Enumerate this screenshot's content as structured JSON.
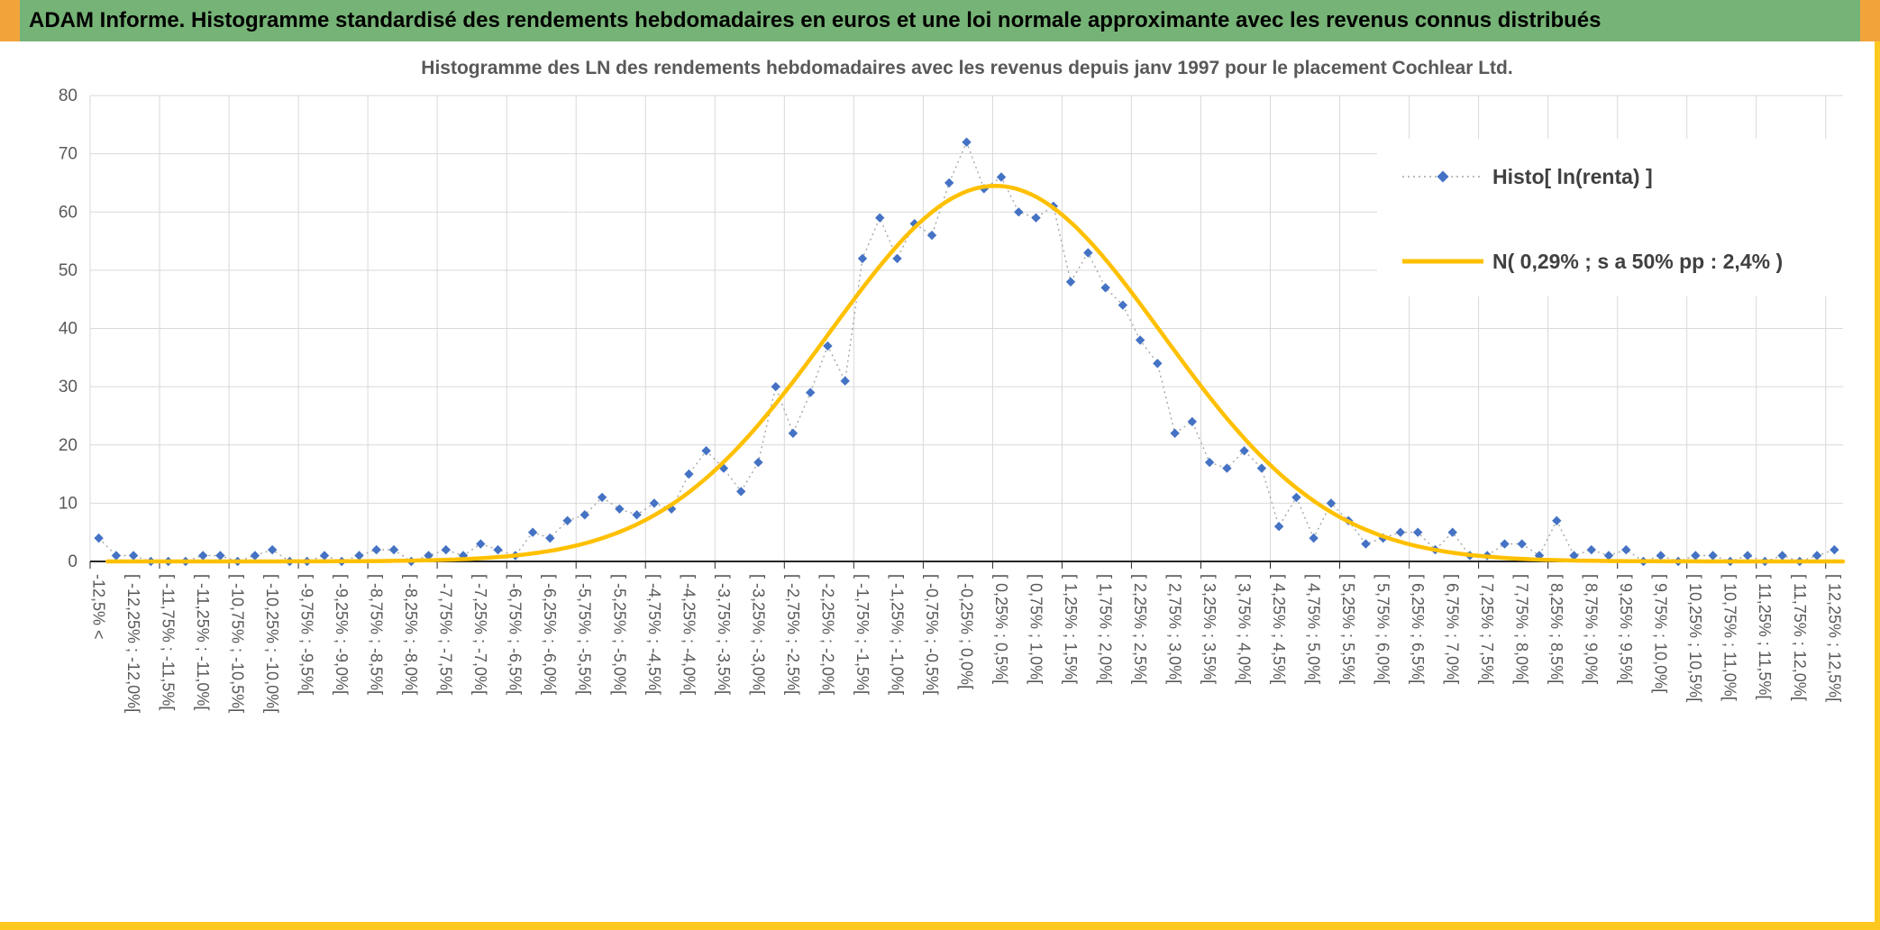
{
  "header": {
    "title": "ADAM Informe. Histogramme standardisé des rendements hebdomadaires en euros et une loi normale approximante avec les revenus connus distribués"
  },
  "colors": {
    "header_green": "#76B376",
    "accent_orange": "#F2A43B",
    "accent_gold": "#FFC81E",
    "hist_marker": "#4472C4",
    "hist_line": "#A6A6A6",
    "normal_curve": "#FFC000",
    "grid": "#D9D9D9",
    "axis": "#262626",
    "text_gray": "#595959",
    "legend_text": "#404040"
  },
  "chart_data": {
    "type": "line",
    "title": "Histogramme des LN des rendements hebdomadaires avec les revenus depuis janv 1997 pour le placement Cochlear Ltd.",
    "ylim": [
      0,
      80
    ],
    "yticks": [
      0,
      10,
      20,
      30,
      40,
      50,
      60,
      70,
      80
    ],
    "grid": true,
    "legend_position": "top-right",
    "x_range_pct": [
      -12.5,
      12.5
    ],
    "bin_width_pct": 0.25,
    "x_label_every_n_bins": 2,
    "x_labels": [
      "-12,5% <",
      "[ -12,25% ; -12,0%[",
      "[ -11,75% ; -11,5%[",
      "[ -11,25% ; -11,0%[",
      "[ -10,75% ; -10,5%[",
      "[ -10,25% ; -10,0%[",
      "[ -9,75% ; -9,5%[",
      "[ -9,25% ; -9,0%[",
      "[ -8,75% ; -8,5%[",
      "[ -8,25% ; -8,0%[",
      "[ -7,75% ; -7,5%[",
      "[ -7,25% ; -7,0%[",
      "[ -6,75% ; -6,5%[",
      "[ -6,25% ; -6,0%[",
      "[ -5,75% ; -5,5%[",
      "[ -5,25% ; -5,0%[",
      "[ -4,75% ; -4,5%[",
      "[ -4,25% ; -4,0%[",
      "[ -3,75% ; -3,5%[",
      "[ -3,25% ; -3,0%[",
      "[ -2,75% ; -2,5%[",
      "[ -2,25% ; -2,0%[",
      "[ -1,75% ; -1,5%[",
      "[ -1,25% ; -1,0%[",
      "[ -0,75% ; -0,5%[",
      "[ -0,25% ; 0,0%[",
      "[ 0,25% ; 0,5%[",
      "[ 0,75% ; 1,0%[",
      "[ 1,25% ; 1,5%[",
      "[ 1,75% ; 2,0%[",
      "[ 2,25% ; 2,5%[",
      "[ 2,75% ; 3,0%[",
      "[ 3,25% ; 3,5%[",
      "[ 3,75% ; 4,0%[",
      "[ 4,25% ; 4,5%[",
      "[ 4,75% ; 5,0%[",
      "[ 5,25% ; 5,5%[",
      "[ 5,75% ; 6,0%[",
      "[ 6,25% ; 6,5%[",
      "[ 6,75% ; 7,0%[",
      "[ 7,25% ; 7,5%[",
      "[ 7,75% ; 8,0%[",
      "[ 8,25% ; 8,5%[",
      "[ 8,75% ; 9,0%[",
      "[ 9,25% ; 9,5%[",
      "[ 9,75% ; 10,0%[",
      "[ 10,25% ; 10,5%[",
      "[ 10,75% ; 11,0%[",
      "[ 11,25% ; 11,5%[",
      "[ 11,75% ; 12,0%[",
      "[ 12,25% ; 12,5%["
    ],
    "series": [
      {
        "name": "Histo[ ln(renta) ]",
        "style": "dotted-line-diamond-markers",
        "values": [
          4,
          1,
          1,
          0,
          0,
          0,
          1,
          1,
          0,
          1,
          2,
          0,
          0,
          1,
          0,
          1,
          2,
          2,
          0,
          1,
          2,
          1,
          3,
          2,
          1,
          5,
          4,
          7,
          8,
          11,
          9,
          8,
          10,
          9,
          15,
          19,
          16,
          12,
          17,
          30,
          22,
          29,
          37,
          31,
          52,
          59,
          52,
          58,
          56,
          65,
          72,
          64,
          66,
          60,
          59,
          61,
          48,
          53,
          47,
          44,
          38,
          34,
          22,
          24,
          17,
          16,
          19,
          16,
          6,
          11,
          4,
          10,
          7,
          3,
          4,
          5,
          5,
          2,
          5,
          1,
          1,
          3,
          3,
          1,
          7,
          1,
          2,
          1,
          2,
          0,
          1,
          0,
          1,
          1,
          0,
          1,
          0,
          1,
          0,
          1,
          2
        ]
      },
      {
        "name": "N( 0,29% ; s a 50% pp : 2,4% )",
        "style": "smooth-solid-line",
        "mean_pct": 0.29,
        "sd_pct": 2.4,
        "peak": 64.5
      }
    ]
  }
}
